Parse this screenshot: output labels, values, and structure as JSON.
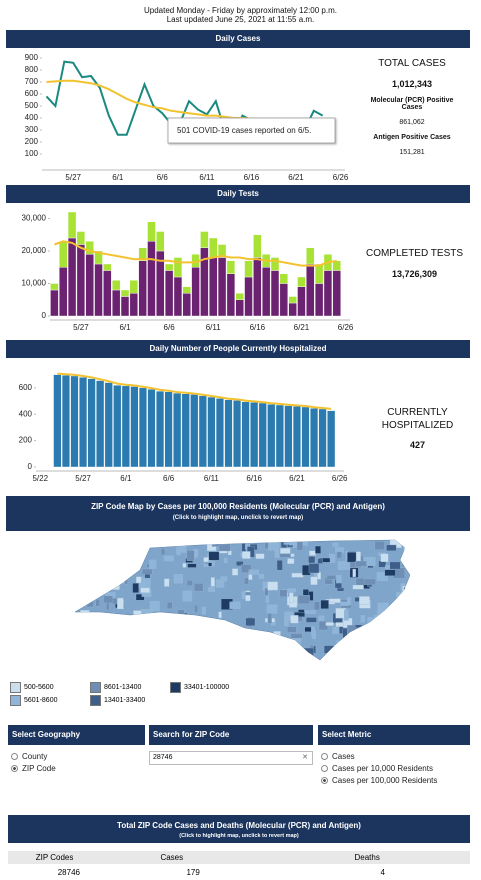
{
  "header": {
    "line1": "Updated Monday - Friday by approximately 12:00 p.m.",
    "line2": "Last updated June 25, 2021 at 11:55 a.m."
  },
  "chart_data": [
    {
      "type": "line",
      "title": "Daily Cases",
      "categories": [
        null,
        null,
        null,
        "5/27",
        null,
        null,
        null,
        null,
        "6/1",
        null,
        null,
        null,
        null,
        "6/6",
        null,
        null,
        null,
        null,
        "6/11",
        null,
        null,
        null,
        null,
        "6/16",
        null,
        null,
        null,
        null,
        "6/21",
        null,
        null,
        null,
        null,
        "6/26"
      ],
      "ylim": [
        0,
        950
      ],
      "yticks": [
        100,
        200,
        300,
        400,
        500,
        600,
        700,
        800,
        900
      ],
      "annotation": "501 COVID-19 cases reported on 6/5.",
      "series": [
        {
          "type": "line",
          "color": "#1a8a80",
          "values": [
            580,
            500,
            870,
            860,
            740,
            750,
            650,
            420,
            260,
            260,
            470,
            680,
            501,
            440,
            350,
            360,
            540,
            470,
            430,
            540,
            300,
            280,
            420,
            380,
            360,
            340,
            270,
            250,
            330,
            310,
            460,
            420,
            null,
            null
          ]
        },
        {
          "type": "line",
          "color": "#f2c230",
          "values": [
            700,
            705,
            710,
            710,
            700,
            690,
            670,
            640,
            600,
            560,
            530,
            510,
            490,
            480,
            460,
            450,
            440,
            430,
            420,
            420,
            410,
            400,
            400,
            395,
            390,
            385,
            380,
            375,
            370,
            370,
            380,
            385,
            null,
            null
          ]
        }
      ]
    },
    {
      "type": "bar",
      "title": "Daily Tests",
      "stacked": true,
      "categories": [
        null,
        null,
        null,
        "5/27",
        null,
        null,
        null,
        null,
        "6/1",
        null,
        null,
        null,
        null,
        "6/6",
        null,
        null,
        null,
        null,
        "6/11",
        null,
        null,
        null,
        null,
        "6/16",
        null,
        null,
        null,
        null,
        "6/21",
        null,
        null,
        null,
        null,
        "6/26"
      ],
      "ylim": [
        0,
        32000
      ],
      "yticks": [
        0,
        {
          "value": 10000,
          "label": "10,000"
        },
        {
          "value": 20000,
          "label": "20,000"
        },
        {
          "value": 30000,
          "label": "30,000"
        }
      ],
      "series": [
        {
          "type": "bar",
          "color": "#6b2270",
          "values": [
            8000,
            15000,
            24000,
            22000,
            19000,
            16000,
            14000,
            8000,
            6000,
            7000,
            17000,
            23000,
            20000,
            14000,
            12000,
            7000,
            15000,
            21000,
            18000,
            18000,
            13000,
            5000,
            12000,
            18000,
            15000,
            14000,
            10000,
            4000,
            9000,
            16000,
            10000,
            14000,
            14000,
            null
          ]
        },
        {
          "type": "bar",
          "color": "#a8e234",
          "values": [
            2000,
            8000,
            8000,
            4000,
            4000,
            4000,
            2000,
            3000,
            2000,
            4000,
            4000,
            6000,
            6000,
            2000,
            6000,
            2000,
            4000,
            5000,
            6000,
            4000,
            4000,
            2000,
            5000,
            7000,
            4000,
            4000,
            3000,
            2000,
            3000,
            5000,
            6000,
            5000,
            3000,
            null
          ]
        },
        {
          "type": "line",
          "color": "#f2c230",
          "values": [
            22000,
            23000,
            22500,
            21000,
            20000,
            19500,
            19000,
            18500,
            18000,
            17500,
            17500,
            17500,
            17000,
            17000,
            16500,
            16500,
            16500,
            17500,
            18000,
            18500,
            18000,
            18000,
            17500,
            17500,
            17000,
            17000,
            16500,
            16000,
            15500,
            15500,
            15500,
            16500,
            17000,
            null
          ]
        }
      ]
    },
    {
      "type": "bar",
      "title": "Daily Number of People Currently Hospitalized",
      "categories": [
        "5/22",
        null,
        null,
        null,
        null,
        "5/27",
        null,
        null,
        null,
        null,
        "6/1",
        null,
        null,
        null,
        null,
        "6/6",
        null,
        null,
        null,
        null,
        "6/11",
        null,
        null,
        null,
        null,
        "6/16",
        null,
        null,
        null,
        null,
        "6/21",
        null,
        null,
        null,
        null,
        "6/26"
      ],
      "ylim": [
        0,
        720
      ],
      "yticks": [
        0,
        200,
        400,
        600
      ],
      "series": [
        {
          "type": "bar",
          "color": "#2b7bb0",
          "values": [
            null,
            null,
            700,
            695,
            690,
            680,
            670,
            655,
            640,
            620,
            615,
            610,
            600,
            590,
            575,
            570,
            560,
            555,
            550,
            540,
            530,
            520,
            510,
            505,
            495,
            490,
            485,
            475,
            470,
            465,
            460,
            455,
            445,
            440,
            427,
            null
          ]
        },
        {
          "type": "line",
          "color": "#f2c230",
          "values": [
            null,
            null,
            708,
            703,
            698,
            690,
            680,
            665,
            650,
            632,
            624,
            618,
            608,
            598,
            584,
            578,
            568,
            562,
            556,
            548,
            538,
            528,
            518,
            512,
            503,
            497,
            492,
            483,
            478,
            472,
            467,
            462,
            453,
            447,
            440,
            null
          ]
        }
      ]
    }
  ],
  "summary": [
    {
      "label": "TOTAL CASES",
      "value": "1,012,343",
      "details": [
        {
          "label": "Molecular (PCR) Positive Cases",
          "value": "861,062"
        },
        {
          "label": "Antigen Positive Cases",
          "value": "151,281"
        }
      ]
    },
    {
      "label": "COMPLETED TESTS",
      "value": "13,726,309"
    },
    {
      "label": "CURRENTLY HOSPITALIZED",
      "value": "427"
    }
  ],
  "map": {
    "title": "ZIP Code Map by Cases per 100,000 Residents (Molecular (PCR) and Antigen)",
    "subtitle": "(Click to highlight map, unclick to revert map)",
    "legend": [
      {
        "label": "500-5600",
        "color": "#c9dff0"
      },
      {
        "label": "5601-8600",
        "color": "#8fb5d8"
      },
      {
        "label": "8601-13400",
        "color": "#6e8fb3"
      },
      {
        "label": "13401-33400",
        "color": "#3d5f8a"
      },
      {
        "label": "33401-100000",
        "color": "#1e3b63"
      }
    ]
  },
  "controls": {
    "geography": {
      "title": "Select Geography",
      "options": [
        "County",
        "ZIP Code"
      ],
      "selected": 1
    },
    "search": {
      "title": "Search for ZIP Code",
      "value": "28746"
    },
    "metric": {
      "title": "Select Metric",
      "options": [
        "Cases",
        "Cases per 10,000 Residents",
        "Cases per 100,000 Residents"
      ],
      "selected": 2
    }
  },
  "table": {
    "title": "Total ZIP Code Cases and Deaths (Molecular (PCR) and Antigen)",
    "subtitle": "(Click to highlight map, unclick to revert map)",
    "columns": [
      "ZIP Codes",
      "Cases",
      "Deaths"
    ],
    "rows": [
      [
        "28746",
        "179",
        "4"
      ]
    ]
  }
}
